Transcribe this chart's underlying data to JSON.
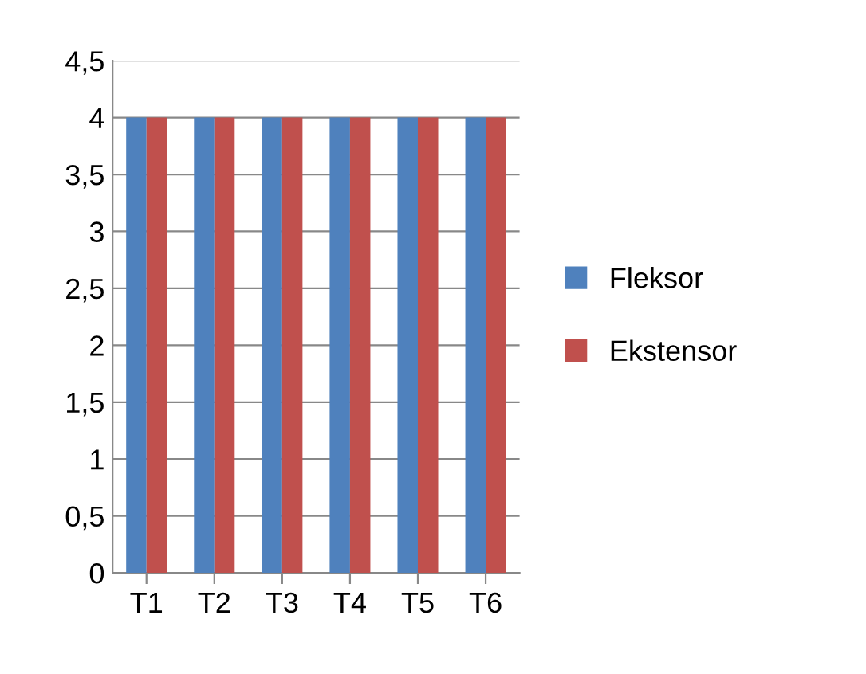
{
  "chart_data": {
    "type": "bar",
    "categories": [
      "T1",
      "T2",
      "T3",
      "T4",
      "T5",
      "T6"
    ],
    "series": [
      {
        "name": "Fleksor",
        "color": "#4f81bd",
        "values": [
          4,
          4,
          4,
          4,
          4,
          4
        ]
      },
      {
        "name": "Ekstensor",
        "color": "#c0504d",
        "values": [
          4,
          4,
          4,
          4,
          4,
          4
        ]
      }
    ],
    "ylim": [
      0,
      4.5
    ],
    "yticks": [
      0,
      {
        "value": 0.5,
        "label": "0,5"
      },
      1,
      {
        "value": 1.5,
        "label": "1,5"
      },
      2,
      {
        "value": 2.5,
        "label": "2,5"
      },
      3,
      {
        "value": 3.5,
        "label": "3,5"
      },
      4,
      {
        "value": 4.5,
        "label": "4,5"
      }
    ],
    "grid": "y",
    "legend": "right"
  }
}
